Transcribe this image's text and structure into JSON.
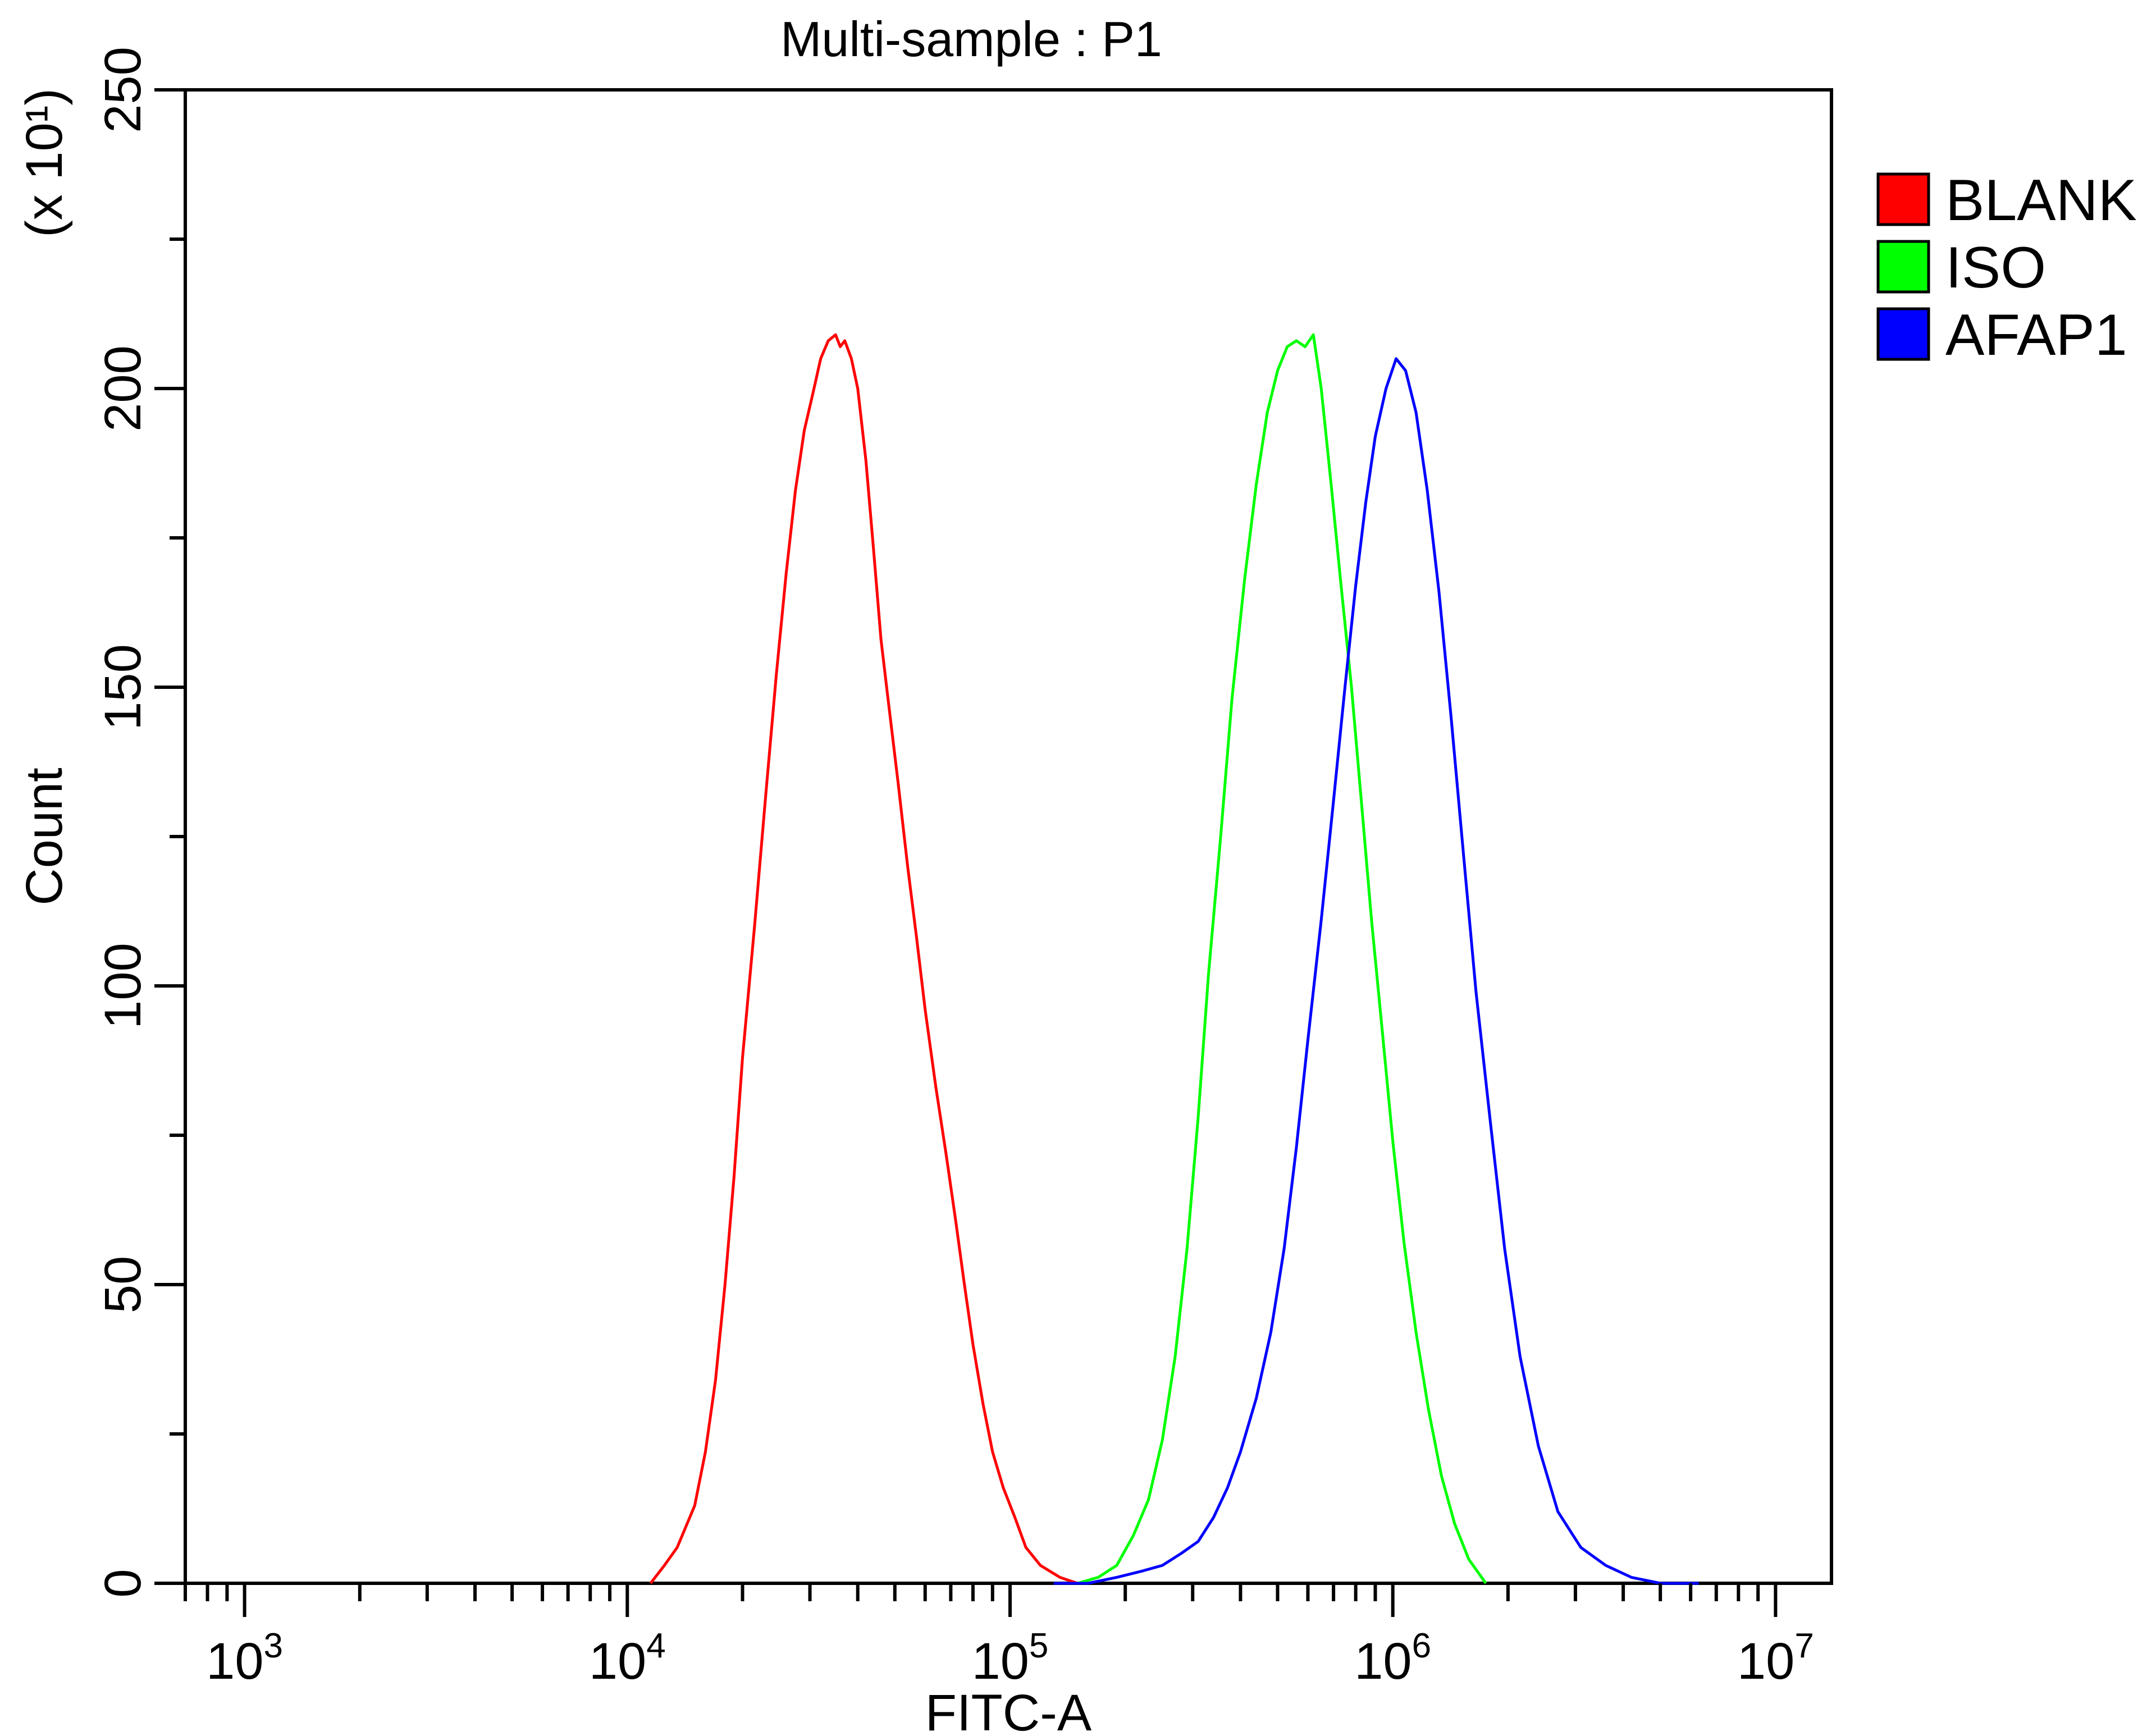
{
  "chart_data": {
    "type": "line",
    "title": "Multi-sample : P1",
    "xlabel": "FITC-A",
    "ylabel": "Count",
    "y_multiplier_label": "(x 10¹)",
    "x_scale": "log",
    "xlim": [
      700,
      14000000
    ],
    "ylim": [
      0,
      250
    ],
    "x_ticks": [
      {
        "base": "10",
        "exp": "3",
        "value": 1000
      },
      {
        "base": "10",
        "exp": "4",
        "value": 10000
      },
      {
        "base": "10",
        "exp": "5",
        "value": 100000
      },
      {
        "base": "10",
        "exp": "6",
        "value": 1000000
      },
      {
        "base": "10",
        "exp": "7",
        "value": 10000000
      }
    ],
    "y_ticks": [
      "0",
      "50",
      "100",
      "150",
      "200",
      "250"
    ],
    "y_tick_values": [
      0,
      50,
      100,
      150,
      200,
      250
    ],
    "grid": false,
    "legend_position": "right-top",
    "series": [
      {
        "name": "BLANK",
        "color": "#ff0000",
        "x": [
          11500,
          12500,
          13500,
          15000,
          16000,
          17000,
          18000,
          19000,
          20000,
          21500,
          23000,
          24500,
          26000,
          27500,
          29000,
          30500,
          32000,
          33500,
          35000,
          36000,
          37000,
          38500,
          40000,
          42000,
          44000,
          46000,
          48000,
          51000,
          54000,
          57000,
          60000,
          64000,
          68000,
          72000,
          76000,
          80000,
          85000,
          90000,
          96000,
          103000,
          110000,
          120000,
          135000,
          150000
        ],
        "y": [
          0,
          3,
          6,
          13,
          22,
          34,
          50,
          68,
          88,
          110,
          132,
          152,
          169,
          183,
          193,
          199,
          205,
          208,
          209,
          207,
          208,
          205,
          200,
          188,
          173,
          158,
          148,
          134,
          120,
          108,
          96,
          83,
          72,
          61,
          50,
          40,
          30,
          22,
          16,
          11,
          6,
          3,
          1,
          0
        ]
      },
      {
        "name": "ISO",
        "color": "#00ff00",
        "x": [
          150000,
          170000,
          190000,
          210000,
          230000,
          250000,
          270000,
          290000,
          310000,
          330000,
          355000,
          380000,
          410000,
          440000,
          470000,
          500000,
          530000,
          560000,
          590000,
          620000,
          650000,
          690000,
          730000,
          780000,
          830000,
          880000,
          940000,
          1000000,
          1070000,
          1150000,
          1240000,
          1340000,
          1450000,
          1580000,
          1750000
        ],
        "y": [
          0,
          1,
          3,
          8,
          14,
          24,
          38,
          56,
          78,
          102,
          125,
          148,
          168,
          184,
          196,
          203,
          207,
          208,
          207,
          209,
          200,
          184,
          168,
          150,
          130,
          111,
          92,
          74,
          57,
          42,
          29,
          18,
          10,
          4,
          0
        ]
      },
      {
        "name": "AFAP1",
        "color": "#0000ff",
        "x": [
          130000,
          160000,
          190000,
          220000,
          250000,
          280000,
          310000,
          340000,
          370000,
          400000,
          440000,
          480000,
          520000,
          560000,
          600000,
          650000,
          700000,
          750000,
          800000,
          850000,
          900000,
          960000,
          1020000,
          1080000,
          1150000,
          1230000,
          1320000,
          1420000,
          1530000,
          1650000,
          1800000,
          1960000,
          2150000,
          2400000,
          2700000,
          3100000,
          3600000,
          4200000,
          5000000,
          6300000
        ],
        "y": [
          0,
          0,
          1,
          2,
          3,
          5,
          7,
          11,
          16,
          22,
          31,
          42,
          56,
          73,
          91,
          111,
          131,
          150,
          167,
          181,
          192,
          200,
          205,
          203,
          196,
          183,
          166,
          145,
          122,
          99,
          77,
          56,
          38,
          23,
          12,
          6,
          3,
          1,
          0,
          0
        ]
      }
    ]
  }
}
